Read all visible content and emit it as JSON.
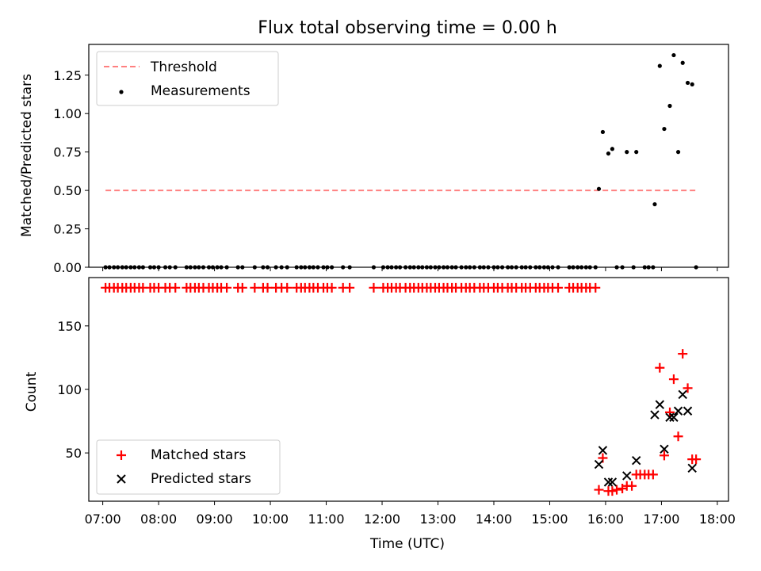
{
  "chart_data": [
    {
      "type": "scatter",
      "title": "Flux total observing time = 0.00 h",
      "xlabel": "",
      "ylabel": "Matched/Predicted stars",
      "xlim": [
        6.75,
        18.2
      ],
      "ylim": [
        0.0,
        1.45
      ],
      "yticks": [
        0.0,
        0.25,
        0.5,
        0.75,
        1.0,
        1.25
      ],
      "ytick_labels": [
        "0.00",
        "0.25",
        "0.50",
        "0.75",
        "1.00",
        "1.25"
      ],
      "legend": {
        "position": "top-left",
        "entries": [
          "Threshold",
          "Measurements"
        ]
      },
      "threshold": {
        "name": "Threshold",
        "value": 0.5,
        "x_range": [
          7.05,
          17.65
        ],
        "color": "#ff8080"
      },
      "measurements": {
        "name": "Measurements",
        "color": "#000000",
        "zero_x": [
          7.05,
          7.12,
          7.2,
          7.27,
          7.35,
          7.42,
          7.5,
          7.57,
          7.65,
          7.72,
          7.85,
          7.92,
          8.0,
          8.12,
          8.2,
          8.3,
          8.5,
          8.57,
          8.65,
          8.72,
          8.8,
          8.9,
          8.97,
          9.05,
          9.12,
          9.22,
          9.42,
          9.5,
          9.72,
          9.87,
          9.95,
          10.1,
          10.2,
          10.3,
          10.47,
          10.55,
          10.62,
          10.7,
          10.77,
          10.85,
          10.95,
          11.02,
          11.1,
          11.3,
          11.42,
          11.85,
          12.02,
          12.1,
          12.17,
          12.25,
          12.32,
          12.42,
          12.5,
          12.57,
          12.65,
          12.72,
          12.8,
          12.87,
          12.95,
          13.02,
          13.1,
          13.17,
          13.25,
          13.32,
          13.42,
          13.5,
          13.57,
          13.65,
          13.75,
          13.82,
          13.9,
          14.0,
          14.07,
          14.15,
          14.25,
          14.32,
          14.4,
          14.5,
          14.57,
          14.65,
          14.75,
          14.82,
          14.9,
          14.97,
          15.05,
          15.15,
          15.35,
          15.42,
          15.5,
          15.57,
          15.65,
          15.72,
          15.82,
          16.2,
          16.3,
          16.5,
          16.7,
          16.77,
          16.85,
          17.62
        ],
        "points": [
          [
            15.88,
            0.51
          ],
          [
            15.95,
            0.88
          ],
          [
            16.05,
            0.74
          ],
          [
            16.12,
            0.77
          ],
          [
            16.38,
            0.75
          ],
          [
            16.55,
            0.75
          ],
          [
            16.88,
            0.41
          ],
          [
            16.97,
            1.31
          ],
          [
            17.05,
            0.9
          ],
          [
            17.15,
            1.05
          ],
          [
            17.22,
            1.38
          ],
          [
            17.3,
            0.75
          ],
          [
            17.38,
            1.33
          ],
          [
            17.47,
            1.2
          ],
          [
            17.55,
            1.19
          ]
        ]
      }
    },
    {
      "type": "scatter",
      "xlabel": "Time (UTC)",
      "ylabel": "Count",
      "xlim": [
        6.75,
        18.2
      ],
      "ylim": [
        12,
        188
      ],
      "yticks": [
        50,
        100,
        150
      ],
      "ytick_labels": [
        "50",
        "100",
        "150"
      ],
      "xticks": [
        7,
        8,
        9,
        10,
        11,
        12,
        13,
        14,
        15,
        16,
        17,
        18
      ],
      "xtick_labels": [
        "07:00",
        "08:00",
        "09:00",
        "10:00",
        "11:00",
        "12:00",
        "13:00",
        "14:00",
        "15:00",
        "16:00",
        "17:00",
        "18:00"
      ],
      "legend": {
        "position": "bottom-left",
        "entries": [
          "Matched stars",
          "Predicted stars"
        ]
      },
      "matched": {
        "name": "Matched stars",
        "color": "#ff0000",
        "top_value": 180,
        "top_x": [
          7.05,
          7.12,
          7.2,
          7.27,
          7.35,
          7.42,
          7.5,
          7.57,
          7.65,
          7.72,
          7.85,
          7.92,
          8.0,
          8.12,
          8.2,
          8.3,
          8.5,
          8.57,
          8.65,
          8.72,
          8.8,
          8.9,
          8.97,
          9.05,
          9.12,
          9.22,
          9.42,
          9.5,
          9.72,
          9.87,
          9.95,
          10.1,
          10.2,
          10.3,
          10.47,
          10.55,
          10.62,
          10.7,
          10.77,
          10.85,
          10.95,
          11.02,
          11.1,
          11.3,
          11.42,
          11.85,
          12.02,
          12.1,
          12.17,
          12.25,
          12.32,
          12.42,
          12.5,
          12.57,
          12.65,
          12.72,
          12.8,
          12.87,
          12.95,
          13.02,
          13.1,
          13.17,
          13.25,
          13.32,
          13.42,
          13.5,
          13.57,
          13.65,
          13.75,
          13.82,
          13.9,
          14.0,
          14.07,
          14.15,
          14.25,
          14.32,
          14.4,
          14.5,
          14.57,
          14.65,
          14.75,
          14.82,
          14.9,
          14.97,
          15.05,
          15.15,
          15.35,
          15.42,
          15.5,
          15.57,
          15.65,
          15.72,
          15.82
        ],
        "points": [
          [
            15.88,
            21
          ],
          [
            15.95,
            46
          ],
          [
            16.05,
            20
          ],
          [
            16.12,
            20
          ],
          [
            16.2,
            21
          ],
          [
            16.3,
            22
          ],
          [
            16.38,
            24
          ],
          [
            16.47,
            24
          ],
          [
            16.55,
            33
          ],
          [
            16.62,
            33
          ],
          [
            16.7,
            33
          ],
          [
            16.77,
            33
          ],
          [
            16.85,
            33
          ],
          [
            16.97,
            117
          ],
          [
            17.05,
            48
          ],
          [
            17.15,
            82
          ],
          [
            17.22,
            108
          ],
          [
            17.3,
            63
          ],
          [
            17.38,
            128
          ],
          [
            17.47,
            101
          ],
          [
            17.55,
            45
          ],
          [
            17.62,
            45
          ]
        ]
      },
      "predicted": {
        "name": "Predicted stars",
        "color": "#000000",
        "points": [
          [
            15.88,
            41
          ],
          [
            15.95,
            52
          ],
          [
            16.05,
            27
          ],
          [
            16.12,
            27
          ],
          [
            16.38,
            32
          ],
          [
            16.55,
            44
          ],
          [
            16.88,
            80
          ],
          [
            16.97,
            88
          ],
          [
            17.05,
            53
          ],
          [
            17.15,
            78
          ],
          [
            17.22,
            78
          ],
          [
            17.3,
            83
          ],
          [
            17.38,
            96
          ],
          [
            17.47,
            83
          ],
          [
            17.55,
            38
          ]
        ]
      }
    }
  ]
}
